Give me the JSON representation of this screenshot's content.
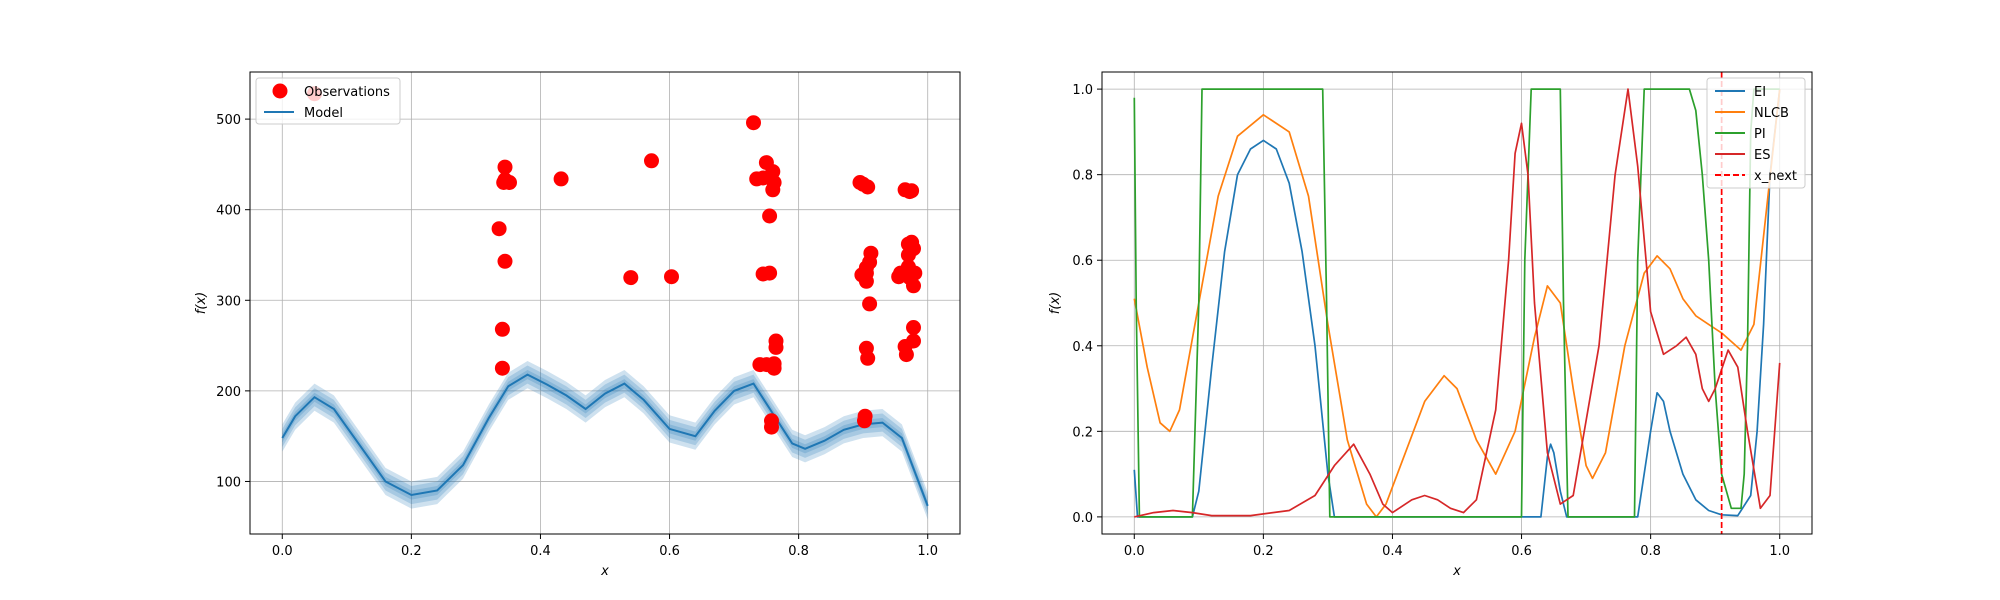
{
  "chart_data": [
    {
      "type": "scatter",
      "xlabel": "x",
      "ylabel": "f(x)",
      "xlim": [
        -0.05,
        1.05
      ],
      "ylim": [
        42,
        552
      ],
      "xticks": [
        0.0,
        0.2,
        0.4,
        0.6,
        0.8,
        1.0
      ],
      "yticks": [
        100,
        200,
        300,
        400,
        500
      ],
      "grid": true,
      "legend": {
        "placement": "top-left",
        "entries": [
          "Observations",
          "Model"
        ]
      },
      "colors": {
        "observations": "#ff0000",
        "model": "#1f77b4"
      },
      "observations": {
        "name": "Observations",
        "x": [
          0.05,
          0.336,
          0.341,
          0.341,
          0.345,
          0.343,
          0.345,
          0.345,
          0.352,
          0.432,
          0.54,
          0.572,
          0.603,
          0.73,
          0.735,
          0.74,
          0.745,
          0.745,
          0.75,
          0.75,
          0.755,
          0.755,
          0.758,
          0.758,
          0.76,
          0.76,
          0.762,
          0.762,
          0.762,
          0.765,
          0.765,
          0.895,
          0.898,
          0.9,
          0.902,
          0.903,
          0.905,
          0.905,
          0.905,
          0.905,
          0.907,
          0.907,
          0.91,
          0.91,
          0.912,
          0.955,
          0.958,
          0.965,
          0.965,
          0.967,
          0.97,
          0.97,
          0.97,
          0.972,
          0.972,
          0.975,
          0.975,
          0.975,
          0.978,
          0.978,
          0.978,
          0.978,
          0.98
        ],
        "y": [
          528,
          379,
          225,
          268,
          343,
          430,
          447,
          433,
          430,
          434,
          325,
          454,
          326,
          496,
          434,
          229,
          329,
          435,
          452,
          229,
          330,
          393,
          160,
          167,
          442,
          422,
          430,
          225,
          230,
          248,
          255,
          430,
          328,
          428,
          167,
          172,
          247,
          321,
          330,
          336,
          425,
          236,
          296,
          342,
          352,
          326,
          330,
          249,
          422,
          240,
          362,
          350,
          337,
          325,
          420,
          421,
          364,
          331,
          357,
          316,
          255,
          270,
          330
        ]
      },
      "model": {
        "name": "Model",
        "x": [
          0.0,
          0.02,
          0.05,
          0.08,
          0.12,
          0.16,
          0.2,
          0.24,
          0.28,
          0.32,
          0.35,
          0.38,
          0.41,
          0.44,
          0.47,
          0.5,
          0.53,
          0.56,
          0.6,
          0.64,
          0.67,
          0.7,
          0.73,
          0.76,
          0.79,
          0.81,
          0.84,
          0.87,
          0.9,
          0.93,
          0.96,
          1.0
        ],
        "y": [
          148,
          172,
          193,
          180,
          140,
          100,
          85,
          90,
          118,
          170,
          205,
          218,
          207,
          195,
          180,
          197,
          208,
          190,
          158,
          150,
          178,
          200,
          208,
          175,
          142,
          136,
          145,
          157,
          163,
          165,
          148,
          73
        ],
        "band_widths": [
          5,
          10,
          15
        ]
      }
    },
    {
      "type": "line",
      "xlabel": "x",
      "ylabel": "f(x)",
      "xlim": [
        -0.05,
        1.05
      ],
      "ylim": [
        -0.04,
        1.04
      ],
      "xticks": [
        0.0,
        0.2,
        0.4,
        0.6,
        0.8,
        1.0
      ],
      "yticks": [
        0.0,
        0.2,
        0.4,
        0.6,
        0.8,
        1.0
      ],
      "grid": true,
      "legend": {
        "placement": "top-right",
        "entries": [
          "EI",
          "NLCB",
          "PI",
          "ES",
          "x_next"
        ]
      },
      "series": [
        {
          "name": "EI",
          "color": "#1f77b4",
          "x": [
            0.0,
            0.005,
            0.02,
            0.06,
            0.09,
            0.1,
            0.12,
            0.14,
            0.16,
            0.18,
            0.2,
            0.22,
            0.24,
            0.26,
            0.28,
            0.3,
            0.31,
            0.63,
            0.64,
            0.645,
            0.65,
            0.66,
            0.67,
            0.78,
            0.8,
            0.81,
            0.82,
            0.83,
            0.85,
            0.87,
            0.89,
            0.91,
            0.935,
            0.955,
            0.965,
            0.975,
            0.985,
            1.0
          ],
          "y": [
            0.11,
            0.0,
            0.0,
            0.0,
            0.0,
            0.06,
            0.35,
            0.62,
            0.8,
            0.86,
            0.88,
            0.86,
            0.78,
            0.62,
            0.4,
            0.1,
            0.0,
            0.0,
            0.14,
            0.17,
            0.15,
            0.06,
            0.0,
            0.0,
            0.2,
            0.29,
            0.27,
            0.2,
            0.1,
            0.04,
            0.015,
            0.005,
            0.003,
            0.05,
            0.2,
            0.45,
            0.8,
            1.0
          ]
        },
        {
          "name": "NLCB",
          "color": "#ff7f0e",
          "x": [
            0.0,
            0.02,
            0.04,
            0.055,
            0.07,
            0.1,
            0.13,
            0.16,
            0.2,
            0.24,
            0.27,
            0.3,
            0.33,
            0.36,
            0.375,
            0.39,
            0.42,
            0.45,
            0.48,
            0.5,
            0.53,
            0.56,
            0.59,
            0.62,
            0.64,
            0.66,
            0.68,
            0.7,
            0.71,
            0.73,
            0.76,
            0.79,
            0.81,
            0.83,
            0.85,
            0.87,
            0.89,
            0.91,
            0.925,
            0.94,
            0.96,
            1.0
          ],
          "y": [
            0.51,
            0.35,
            0.22,
            0.2,
            0.25,
            0.5,
            0.75,
            0.89,
            0.94,
            0.9,
            0.75,
            0.45,
            0.18,
            0.03,
            0.0,
            0.03,
            0.15,
            0.27,
            0.33,
            0.3,
            0.18,
            0.1,
            0.2,
            0.42,
            0.54,
            0.5,
            0.3,
            0.12,
            0.09,
            0.15,
            0.4,
            0.57,
            0.61,
            0.58,
            0.51,
            0.47,
            0.45,
            0.43,
            0.41,
            0.39,
            0.45,
            1.0
          ]
        },
        {
          "name": "PI",
          "color": "#2ca02c",
          "x": [
            0.0,
            0.003,
            0.008,
            0.09,
            0.1,
            0.105,
            0.292,
            0.298,
            0.303,
            0.6,
            0.605,
            0.615,
            0.66,
            0.665,
            0.672,
            0.775,
            0.78,
            0.79,
            0.86,
            0.87,
            0.88,
            0.89,
            0.9,
            0.91,
            0.925,
            0.94,
            0.945,
            0.95,
            0.955,
            0.96,
            1.0
          ],
          "y": [
            0.98,
            0.5,
            0.0,
            0.0,
            0.5,
            1.0,
            1.0,
            0.5,
            0.0,
            0.0,
            0.6,
            1.0,
            1.0,
            0.5,
            0.0,
            0.0,
            0.6,
            1.0,
            1.0,
            0.95,
            0.8,
            0.6,
            0.3,
            0.1,
            0.02,
            0.02,
            0.1,
            0.4,
            0.9,
            1.0,
            1.0
          ]
        },
        {
          "name": "ES",
          "color": "#d62728",
          "x": [
            0.0,
            0.03,
            0.06,
            0.09,
            0.12,
            0.18,
            0.24,
            0.28,
            0.31,
            0.34,
            0.365,
            0.385,
            0.4,
            0.43,
            0.45,
            0.47,
            0.49,
            0.51,
            0.53,
            0.56,
            0.58,
            0.59,
            0.6,
            0.61,
            0.62,
            0.64,
            0.66,
            0.68,
            0.72,
            0.745,
            0.765,
            0.78,
            0.8,
            0.82,
            0.84,
            0.855,
            0.87,
            0.88,
            0.89,
            0.9,
            0.92,
            0.935,
            0.95,
            0.97,
            0.985,
            1.0
          ],
          "y": [
            0.0,
            0.01,
            0.015,
            0.01,
            0.003,
            0.003,
            0.015,
            0.05,
            0.12,
            0.17,
            0.1,
            0.03,
            0.01,
            0.04,
            0.05,
            0.04,
            0.02,
            0.01,
            0.04,
            0.25,
            0.6,
            0.85,
            0.92,
            0.8,
            0.5,
            0.15,
            0.03,
            0.05,
            0.4,
            0.8,
            1.0,
            0.82,
            0.48,
            0.38,
            0.4,
            0.42,
            0.38,
            0.3,
            0.27,
            0.3,
            0.39,
            0.35,
            0.2,
            0.02,
            0.05,
            0.36
          ]
        }
      ],
      "vline": {
        "name": "x_next",
        "x": 0.91,
        "color": "#ff0000",
        "style": "dashed"
      }
    }
  ]
}
